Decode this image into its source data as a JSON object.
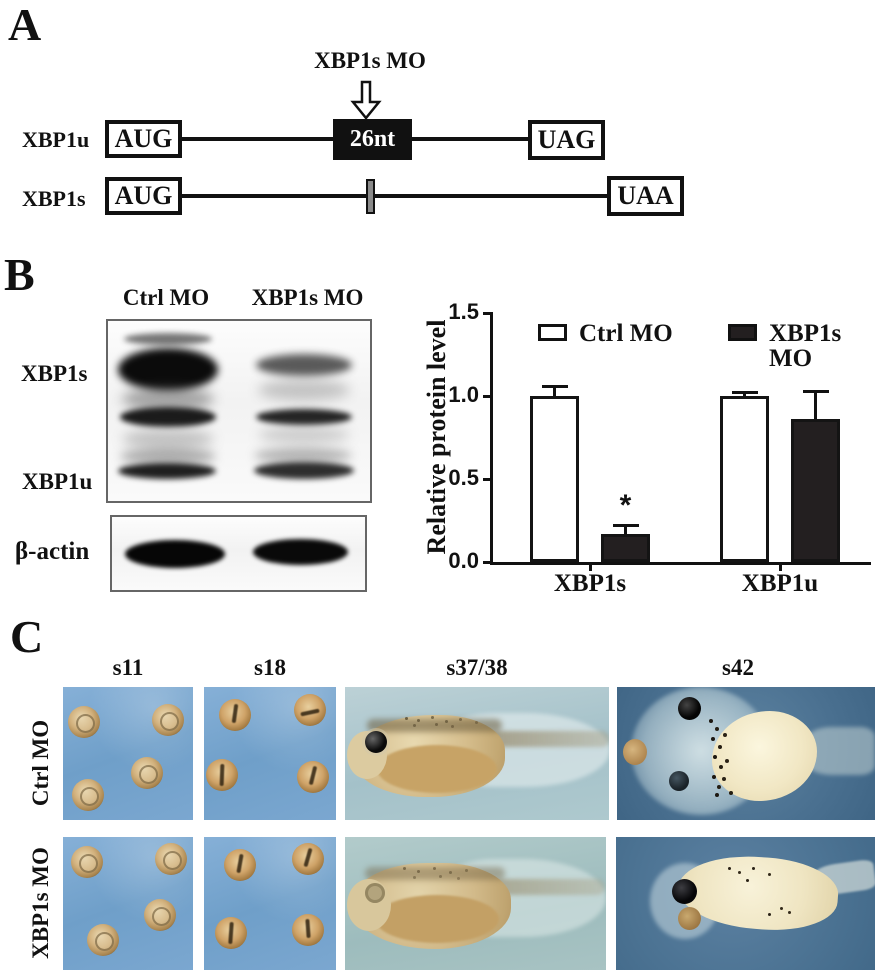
{
  "figure": {
    "panel_a": {
      "label": "A",
      "morpholino_label": "XBP1s MO",
      "transcripts": [
        {
          "name": "XBP1u",
          "start": "AUG",
          "insert": "26nt",
          "stop": "UAG"
        },
        {
          "name": "XBP1s",
          "start": "AUG",
          "stop": "UAA"
        }
      ]
    },
    "panel_b": {
      "label": "B",
      "blot_lane_labels": [
        "Ctrl MO",
        "XBP1s MO"
      ],
      "blot_row_labels": [
        "XBP1s",
        "XBP1u",
        "β-actin"
      ]
    },
    "panel_c": {
      "label": "C",
      "stage_labels": [
        "s11",
        "s18",
        "s37/38",
        "s42"
      ],
      "row_labels": [
        "Ctrl MO",
        "XBP1s MO"
      ]
    }
  },
  "chart_data": {
    "type": "bar",
    "categories": [
      "XBP1s",
      "XBP1u"
    ],
    "series": [
      {
        "name": "Ctrl MO",
        "fill": "#ffffff",
        "values": [
          1.0,
          1.0
        ],
        "errors": [
          0.06,
          0.02
        ]
      },
      {
        "name": "XBP1s MO",
        "fill": "#231f20",
        "values": [
          0.17,
          0.86
        ],
        "errors": [
          0.05,
          0.17
        ]
      }
    ],
    "title": "",
    "xlabel": "",
    "ylabel": "Relative protein level",
    "ylim": [
      0,
      1.5
    ],
    "yticks": [
      0.0,
      0.5,
      1.0,
      1.5
    ],
    "grid": false,
    "legend_position": "top-inside",
    "annotations": [
      {
        "text": "*",
        "category": "XBP1s",
        "series": "XBP1s MO"
      }
    ]
  }
}
